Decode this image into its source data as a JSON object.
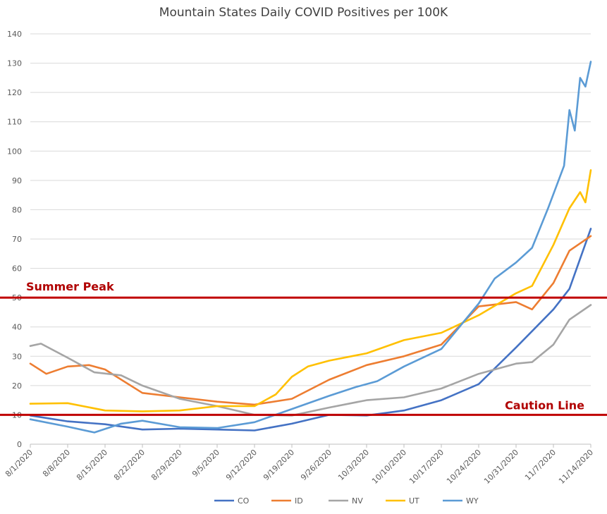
{
  "chart_data": {
    "type": "line",
    "title": "Mountain States Daily COVID Positives per 100K",
    "xlabel": "",
    "ylabel": "",
    "ylim": [
      0,
      140
    ],
    "yticks": [
      0,
      10,
      20,
      30,
      40,
      50,
      60,
      70,
      80,
      90,
      100,
      110,
      120,
      130,
      140
    ],
    "grid": true,
    "legend_position": "bottom",
    "x_start": "8/1/2020",
    "x_end": "11/14/2020",
    "x_tick_labels": [
      "8/1/2020",
      "8/8/2020",
      "8/15/2020",
      "8/22/2020",
      "8/29/2020",
      "9/5/2020",
      "9/12/2020",
      "9/19/2020",
      "9/26/2020",
      "10/3/2020",
      "10/10/2020",
      "10/17/2020",
      "10/24/2020",
      "10/31/2020",
      "11/7/2020",
      "11/14/2020"
    ],
    "reference_lines": [
      {
        "label": "Summer Peak",
        "value": 50,
        "color": "#c00000"
      },
      {
        "label": "Caution Line",
        "value": 10,
        "color": "#c00000"
      }
    ],
    "series": [
      {
        "name": "CO",
        "color": "#4472c4",
        "points": [
          [
            "8/1/2020",
            9.8
          ],
          [
            "8/8/2020",
            7.8
          ],
          [
            "8/15/2020",
            6.8
          ],
          [
            "8/22/2020",
            5.0
          ],
          [
            "8/29/2020",
            5.3
          ],
          [
            "9/5/2020",
            5.0
          ],
          [
            "9/12/2020",
            4.7
          ],
          [
            "9/19/2020",
            7.0
          ],
          [
            "9/26/2020",
            10.0
          ],
          [
            "10/3/2020",
            9.8
          ],
          [
            "10/10/2020",
            11.5
          ],
          [
            "10/17/2020",
            15.0
          ],
          [
            "10/24/2020",
            20.5
          ],
          [
            "10/31/2020",
            33.0
          ],
          [
            "11/7/2020",
            46.0
          ],
          [
            "11/10/2020",
            53.0
          ],
          [
            "11/14/2020",
            73.5
          ]
        ]
      },
      {
        "name": "ID",
        "color": "#ed7d31",
        "points": [
          [
            "8/1/2020",
            27.5
          ],
          [
            "8/4/2020",
            24.0
          ],
          [
            "8/8/2020",
            26.5
          ],
          [
            "8/12/2020",
            27.0
          ],
          [
            "8/15/2020",
            25.5
          ],
          [
            "8/22/2020",
            17.5
          ],
          [
            "8/29/2020",
            16.0
          ],
          [
            "9/5/2020",
            14.5
          ],
          [
            "9/12/2020",
            13.5
          ],
          [
            "9/19/2020",
            15.5
          ],
          [
            "9/26/2020",
            22.0
          ],
          [
            "10/3/2020",
            27.0
          ],
          [
            "10/10/2020",
            30.0
          ],
          [
            "10/17/2020",
            34.0
          ],
          [
            "10/24/2020",
            47.0
          ],
          [
            "10/31/2020",
            48.5
          ],
          [
            "11/3/2020",
            46.0
          ],
          [
            "11/7/2020",
            55.0
          ],
          [
            "11/10/2020",
            66.0
          ],
          [
            "11/14/2020",
            71.0
          ]
        ]
      },
      {
        "name": "NV",
        "color": "#a5a5a5",
        "points": [
          [
            "8/1/2020",
            33.5
          ],
          [
            "8/3/2020",
            34.3
          ],
          [
            "8/8/2020",
            29.5
          ],
          [
            "8/13/2020",
            24.5
          ],
          [
            "8/18/2020",
            23.5
          ],
          [
            "8/22/2020",
            20.0
          ],
          [
            "8/29/2020",
            15.5
          ],
          [
            "9/5/2020",
            13.0
          ],
          [
            "9/12/2020",
            10.0
          ],
          [
            "9/19/2020",
            9.8
          ],
          [
            "9/26/2020",
            12.5
          ],
          [
            "10/3/2020",
            15.0
          ],
          [
            "10/10/2020",
            16.0
          ],
          [
            "10/17/2020",
            19.0
          ],
          [
            "10/24/2020",
            24.0
          ],
          [
            "10/31/2020",
            27.5
          ],
          [
            "11/3/2020",
            28.0
          ],
          [
            "11/7/2020",
            34.0
          ],
          [
            "11/10/2020",
            42.5
          ],
          [
            "11/14/2020",
            47.5
          ]
        ]
      },
      {
        "name": "UT",
        "color": "#ffc000",
        "points": [
          [
            "8/1/2020",
            13.8
          ],
          [
            "8/8/2020",
            14.0
          ],
          [
            "8/15/2020",
            11.5
          ],
          [
            "8/22/2020",
            11.2
          ],
          [
            "8/29/2020",
            11.5
          ],
          [
            "9/5/2020",
            13.0
          ],
          [
            "9/12/2020",
            13.0
          ],
          [
            "9/16/2020",
            17.0
          ],
          [
            "9/19/2020",
            23.0
          ],
          [
            "9/22/2020",
            26.5
          ],
          [
            "9/26/2020",
            28.5
          ],
          [
            "10/3/2020",
            31.0
          ],
          [
            "10/10/2020",
            35.5
          ],
          [
            "10/17/2020",
            38.0
          ],
          [
            "10/24/2020",
            44.0
          ],
          [
            "10/31/2020",
            51.5
          ],
          [
            "11/3/2020",
            54.0
          ],
          [
            "11/7/2020",
            68.0
          ],
          [
            "11/10/2020",
            80.5
          ],
          [
            "11/12/2020",
            86.0
          ],
          [
            "11/13/2020",
            82.5
          ],
          [
            "11/14/2020",
            93.5
          ]
        ]
      },
      {
        "name": "WY",
        "color": "#5b9bd5",
        "points": [
          [
            "8/1/2020",
            8.5
          ],
          [
            "8/8/2020",
            6.0
          ],
          [
            "8/13/2020",
            4.0
          ],
          [
            "8/18/2020",
            7.0
          ],
          [
            "8/22/2020",
            8.0
          ],
          [
            "8/29/2020",
            5.8
          ],
          [
            "9/5/2020",
            5.5
          ],
          [
            "9/12/2020",
            7.5
          ],
          [
            "9/19/2020",
            12.0
          ],
          [
            "9/26/2020",
            16.5
          ],
          [
            "10/1/2020",
            19.5
          ],
          [
            "10/5/2020",
            21.5
          ],
          [
            "10/10/2020",
            26.5
          ],
          [
            "10/17/2020",
            32.5
          ],
          [
            "10/24/2020",
            48.0
          ],
          [
            "10/27/2020",
            56.5
          ],
          [
            "10/31/2020",
            62.0
          ],
          [
            "11/3/2020",
            67.0
          ],
          [
            "11/6/2020",
            80.5
          ],
          [
            "11/9/2020",
            95.0
          ],
          [
            "11/10/2020",
            114.0
          ],
          [
            "11/11/2020",
            107.0
          ],
          [
            "11/12/2020",
            125.0
          ],
          [
            "11/13/2020",
            122.0
          ],
          [
            "11/14/2020",
            130.5
          ]
        ]
      }
    ]
  }
}
